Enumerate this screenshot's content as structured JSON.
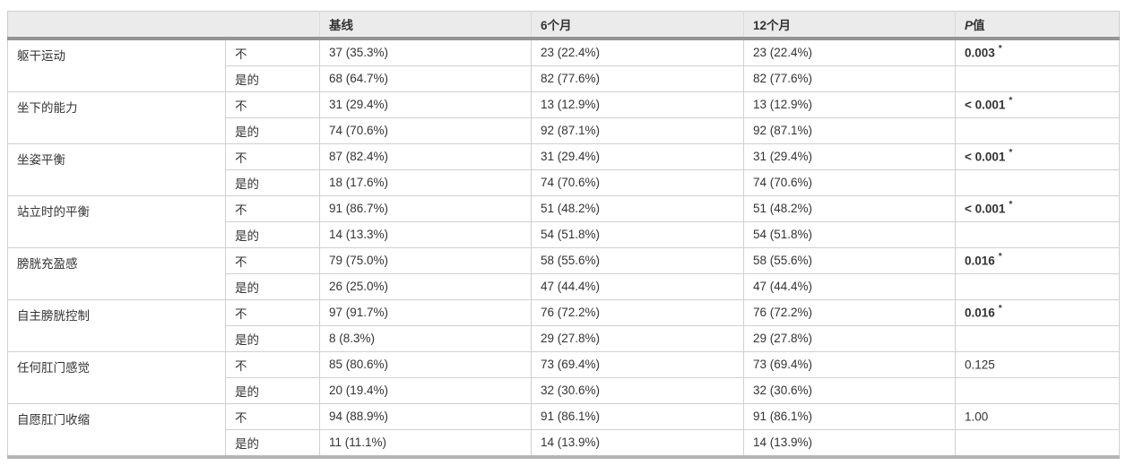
{
  "table": {
    "headers": {
      "empty": "",
      "baseline": "基线",
      "m6": "6个月",
      "m12": "12个月",
      "p_italic": "P",
      "p_rest": "值"
    },
    "colors": {
      "header_bg": "#ebebeb",
      "header_rule": "#949494",
      "bottom_rule": "#b5b5b5",
      "grid_line": "#d0d0d0",
      "text": "#333333"
    },
    "groups": [
      {
        "label": "躯干运动",
        "no_label": "不",
        "yes_label": "是的",
        "no": {
          "baseline": "37 (35.3%)",
          "m6": "23 (22.4%)",
          "m12": "23 (22.4%)"
        },
        "yes": {
          "baseline": "68 (64.7%)",
          "m6": "82 (77.6%)",
          "m12": "82 (77.6%)"
        },
        "p": "0.003",
        "p_star": "*",
        "significant": true
      },
      {
        "label": "坐下的能力",
        "no_label": "不",
        "yes_label": "是的",
        "no": {
          "baseline": "31 (29.4%)",
          "m6": "13 (12.9%)",
          "m12": "13 (12.9%)"
        },
        "yes": {
          "baseline": "74 (70.6%)",
          "m6": "92 (87.1%)",
          "m12": "92 (87.1%)"
        },
        "p": "< 0.001",
        "p_star": "*",
        "significant": true
      },
      {
        "label": "坐姿平衡",
        "no_label": "不",
        "yes_label": "是的",
        "no": {
          "baseline": "87 (82.4%)",
          "m6": "31 (29.4%)",
          "m12": "31 (29.4%)"
        },
        "yes": {
          "baseline": "18 (17.6%)",
          "m6": "74 (70.6%)",
          "m12": "74 (70.6%)"
        },
        "p": "< 0.001",
        "p_star": "*",
        "significant": true
      },
      {
        "label": "站立时的平衡",
        "no_label": "不",
        "yes_label": "是的",
        "no": {
          "baseline": "91 (86.7%)",
          "m6": "51 (48.2%)",
          "m12": "51 (48.2%)"
        },
        "yes": {
          "baseline": "14 (13.3%)",
          "m6": "54 (51.8%)",
          "m12": "54 (51.8%)"
        },
        "p": "< 0.001",
        "p_star": "*",
        "significant": true
      },
      {
        "label": "膀胱充盈感",
        "no_label": "不",
        "yes_label": "是的",
        "no": {
          "baseline": "79 (75.0%)",
          "m6": "58 (55.6%)",
          "m12": "58 (55.6%)"
        },
        "yes": {
          "baseline": "26 (25.0%)",
          "m6": "47 (44.4%)",
          "m12": "47 (44.4%)"
        },
        "p": "0.016",
        "p_star": "*",
        "significant": true
      },
      {
        "label": "自主膀胱控制",
        "no_label": "不",
        "yes_label": "是的",
        "no": {
          "baseline": "97 (91.7%)",
          "m6": "76 (72.2%)",
          "m12": "76 (72.2%)"
        },
        "yes": {
          "baseline": "8 (8.3%)",
          "m6": "29 (27.8%)",
          "m12": "29 (27.8%)"
        },
        "p": "0.016",
        "p_star": "*",
        "significant": true
      },
      {
        "label": "任何肛门感觉",
        "no_label": "不",
        "yes_label": "是的",
        "no": {
          "baseline": "85 (80.6%)",
          "m6": "73 (69.4%)",
          "m12": "73 (69.4%)"
        },
        "yes": {
          "baseline": "20 (19.4%)",
          "m6": "32 (30.6%)",
          "m12": "32 (30.6%)"
        },
        "p": "0.125",
        "p_star": "",
        "significant": false
      },
      {
        "label": "自愿肛门收缩",
        "no_label": "不",
        "yes_label": "是的",
        "no": {
          "baseline": "94 (88.9%)",
          "m6": "91 (86.1%)",
          "m12": "91 (86.1%)"
        },
        "yes": {
          "baseline": "11 (11.1%)",
          "m6": "14 (13.9%)",
          "m12": "14 (13.9%)"
        },
        "p": "1.00",
        "p_star": "",
        "significant": false
      }
    ]
  }
}
